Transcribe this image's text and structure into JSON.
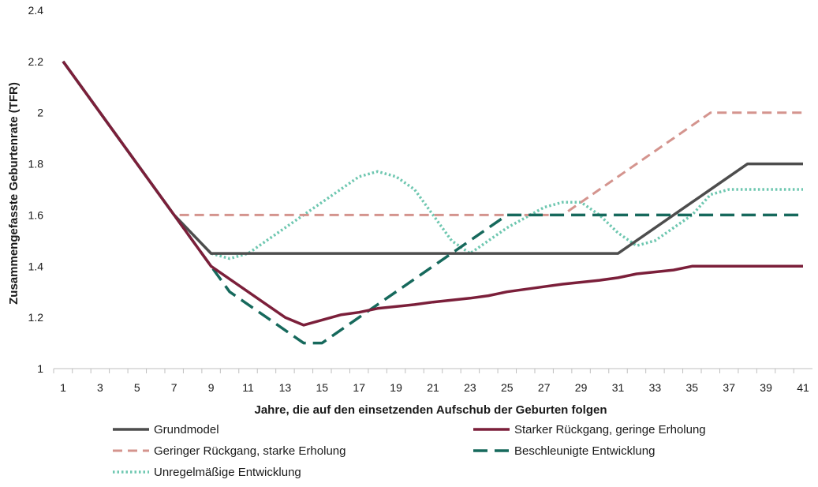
{
  "chart_data": {
    "type": "line",
    "xlabel": "Jahre, die auf den einsetzenden Aufschub der Geburten folgen",
    "ylabel": "Zusammengefasste Geburtenrate (TFR)",
    "xlim": [
      1,
      41
    ],
    "ylim": [
      1,
      2.4
    ],
    "yticks": [
      "1",
      "1.2",
      "1.4",
      "1.6",
      "1.8",
      "2",
      "2.2",
      "2.4"
    ],
    "xticks": [
      "1",
      "3",
      "5",
      "7",
      "9",
      "11",
      "13",
      "15",
      "17",
      "19",
      "21",
      "23",
      "25",
      "27",
      "29",
      "31",
      "33",
      "35",
      "37",
      "39",
      "41"
    ],
    "grid": false,
    "legend_position": "bottom",
    "series": [
      {
        "name": "Grundmodel",
        "color": "#4d4d4d",
        "dash": "solid",
        "points": [
          [
            1,
            2.2
          ],
          [
            7,
            1.6
          ],
          [
            9,
            1.45
          ],
          [
            31,
            1.45
          ],
          [
            35,
            1.65
          ],
          [
            36,
            1.7
          ],
          [
            38,
            1.8
          ],
          [
            41,
            1.8
          ]
        ]
      },
      {
        "name": "Starker Rückgang, geringe Erholung",
        "color": "#7b1f3a",
        "dash": "solid",
        "points": [
          [
            1,
            2.2
          ],
          [
            7,
            1.6
          ],
          [
            9,
            1.4
          ],
          [
            11,
            1.3
          ],
          [
            13,
            1.2
          ],
          [
            14,
            1.17
          ],
          [
            15,
            1.19
          ],
          [
            16,
            1.21
          ],
          [
            17,
            1.22
          ],
          [
            18,
            1.235
          ],
          [
            20,
            1.25
          ],
          [
            21,
            1.26
          ],
          [
            23,
            1.275
          ],
          [
            24,
            1.285
          ],
          [
            25,
            1.3
          ],
          [
            27,
            1.32
          ],
          [
            28,
            1.33
          ],
          [
            30,
            1.345
          ],
          [
            31,
            1.355
          ],
          [
            32,
            1.37
          ],
          [
            34,
            1.385
          ],
          [
            35,
            1.4
          ],
          [
            41,
            1.4
          ]
        ]
      },
      {
        "name": "Geringer Rückgang, starke Erholung",
        "color": "#d4948e",
        "dash": "dashed",
        "points": [
          [
            1,
            2.2
          ],
          [
            7,
            1.6
          ],
          [
            27,
            1.6
          ],
          [
            28,
            1.6
          ],
          [
            36,
            2.0
          ],
          [
            41,
            2.0
          ]
        ]
      },
      {
        "name": "Beschleunigte Entwicklung",
        "color": "#16695c",
        "dash": "longdash",
        "points": [
          [
            1,
            2.2
          ],
          [
            7,
            1.6
          ],
          [
            9,
            1.4
          ],
          [
            10,
            1.3
          ],
          [
            12,
            1.2
          ],
          [
            14,
            1.1
          ],
          [
            15,
            1.1
          ],
          [
            17,
            1.2
          ],
          [
            25,
            1.6
          ],
          [
            41,
            1.6
          ]
        ]
      },
      {
        "name": "Unregelmäßige Entwicklung",
        "color": "#6ec7b0",
        "dash": "dotted",
        "points": [
          [
            1,
            2.2
          ],
          [
            7,
            1.6
          ],
          [
            9,
            1.45
          ],
          [
            10,
            1.43
          ],
          [
            11,
            1.45
          ],
          [
            13,
            1.55
          ],
          [
            15,
            1.65
          ],
          [
            17,
            1.75
          ],
          [
            18,
            1.77
          ],
          [
            19,
            1.75
          ],
          [
            20,
            1.7
          ],
          [
            21,
            1.6
          ],
          [
            22,
            1.5
          ],
          [
            23,
            1.45
          ],
          [
            25,
            1.55
          ],
          [
            27,
            1.63
          ],
          [
            28,
            1.65
          ],
          [
            29,
            1.65
          ],
          [
            30,
            1.6
          ],
          [
            31,
            1.53
          ],
          [
            32,
            1.48
          ],
          [
            33,
            1.5
          ],
          [
            35,
            1.6
          ],
          [
            36,
            1.68
          ],
          [
            37,
            1.7
          ],
          [
            41,
            1.7
          ]
        ]
      }
    ]
  }
}
